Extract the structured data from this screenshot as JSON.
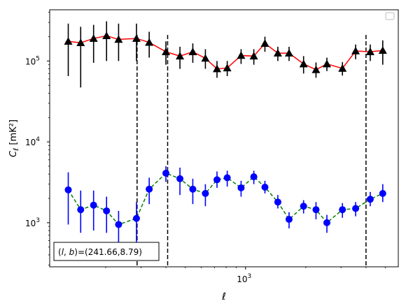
{
  "chart_data": {
    "type": "scatter",
    "xscale": "log",
    "yscale": "log",
    "xlim": [
      105,
      5800
    ],
    "ylim": [
      285,
      430000
    ],
    "xlabel": "ℓ",
    "ylabel": "C_ℓ [mK²]",
    "x_ticks": [
      {
        "value": 1000,
        "base": "10",
        "exp": "3"
      }
    ],
    "y_ticks": [
      {
        "value": 1000,
        "base": "10",
        "exp": "3"
      },
      {
        "value": 10000,
        "base": "10",
        "exp": "4"
      },
      {
        "value": 100000,
        "base": "10",
        "exp": "5"
      }
    ],
    "annotation": "(l, b)=(241.66,8.79)",
    "legend": {
      "placement": "top-right",
      "entries": []
    },
    "vlines": [
      287,
      408,
      4000
    ],
    "series": [
      {
        "color": "#ff0000",
        "marker": "triangle",
        "marker_color": "#000000",
        "errorbar_color": "#000000",
        "linestyle": "solid",
        "points": [
          {
            "x": 130,
            "y": 175000,
            "lo": 65000,
            "hi": 290000
          },
          {
            "x": 150,
            "y": 168000,
            "lo": 47000,
            "hi": 265000
          },
          {
            "x": 174,
            "y": 190000,
            "lo": 95000,
            "hi": 280000
          },
          {
            "x": 202,
            "y": 205000,
            "lo": 100000,
            "hi": 310000
          },
          {
            "x": 232,
            "y": 185000,
            "lo": 100000,
            "hi": 290000
          },
          {
            "x": 285,
            "y": 190000,
            "lo": 100000,
            "hi": 290000
          },
          {
            "x": 330,
            "y": 170000,
            "lo": 110000,
            "hi": 230000
          },
          {
            "x": 400,
            "y": 130000,
            "lo": 90000,
            "hi": 175000
          },
          {
            "x": 470,
            "y": 115000,
            "lo": 80000,
            "hi": 150000
          },
          {
            "x": 545,
            "y": 130000,
            "lo": 95000,
            "hi": 165000
          },
          {
            "x": 630,
            "y": 108000,
            "lo": 80000,
            "hi": 140000
          },
          {
            "x": 720,
            "y": 80000,
            "lo": 62000,
            "hi": 100000
          },
          {
            "x": 810,
            "y": 82000,
            "lo": 65000,
            "hi": 100000
          },
          {
            "x": 950,
            "y": 117000,
            "lo": 92000,
            "hi": 140000
          },
          {
            "x": 1100,
            "y": 115000,
            "lo": 90000,
            "hi": 140000
          },
          {
            "x": 1250,
            "y": 165000,
            "lo": 130000,
            "hi": 200000
          },
          {
            "x": 1450,
            "y": 125000,
            "lo": 100000,
            "hi": 150000
          },
          {
            "x": 1650,
            "y": 125000,
            "lo": 100000,
            "hi": 150000
          },
          {
            "x": 1950,
            "y": 92000,
            "lo": 70000,
            "hi": 115000
          },
          {
            "x": 2250,
            "y": 78000,
            "lo": 62000,
            "hi": 96000
          },
          {
            "x": 2550,
            "y": 92000,
            "lo": 75000,
            "hi": 110000
          },
          {
            "x": 3050,
            "y": 81000,
            "lo": 66000,
            "hi": 97000
          },
          {
            "x": 3550,
            "y": 133000,
            "lo": 105000,
            "hi": 160000
          },
          {
            "x": 4200,
            "y": 130000,
            "lo": 100000,
            "hi": 160000
          },
          {
            "x": 4850,
            "y": 135000,
            "lo": 90000,
            "hi": 180000
          }
        ]
      },
      {
        "color": "#008000",
        "marker": "circle",
        "marker_color": "#0000ff",
        "errorbar_color": "#0000ff",
        "linestyle": "dashed",
        "points": [
          {
            "x": 130,
            "y": 2550,
            "lo": 950,
            "hi": 4200
          },
          {
            "x": 150,
            "y": 1450,
            "lo": 750,
            "hi": 2500
          },
          {
            "x": 174,
            "y": 1650,
            "lo": 800,
            "hi": 2500
          },
          {
            "x": 202,
            "y": 1400,
            "lo": 750,
            "hi": 2100
          },
          {
            "x": 232,
            "y": 950,
            "lo": 550,
            "hi": 1400
          },
          {
            "x": 285,
            "y": 1130,
            "lo": 500,
            "hi": 1800
          },
          {
            "x": 330,
            "y": 2600,
            "lo": 1700,
            "hi": 3600
          },
          {
            "x": 400,
            "y": 4100,
            "lo": 3200,
            "hi": 5000
          },
          {
            "x": 470,
            "y": 3500,
            "lo": 2200,
            "hi": 4800
          },
          {
            "x": 545,
            "y": 2600,
            "lo": 1700,
            "hi": 3500
          },
          {
            "x": 630,
            "y": 2300,
            "lo": 1600,
            "hi": 3000
          },
          {
            "x": 720,
            "y": 3400,
            "lo": 2700,
            "hi": 4300
          },
          {
            "x": 810,
            "y": 3600,
            "lo": 2800,
            "hi": 4400
          },
          {
            "x": 950,
            "y": 2700,
            "lo": 2100,
            "hi": 3300
          },
          {
            "x": 1100,
            "y": 3700,
            "lo": 3000,
            "hi": 4400
          },
          {
            "x": 1250,
            "y": 2750,
            "lo": 2300,
            "hi": 3300
          },
          {
            "x": 1450,
            "y": 1800,
            "lo": 1500,
            "hi": 2200
          },
          {
            "x": 1650,
            "y": 1100,
            "lo": 850,
            "hi": 1350
          },
          {
            "x": 1950,
            "y": 1600,
            "lo": 1300,
            "hi": 1900
          },
          {
            "x": 2250,
            "y": 1450,
            "lo": 1100,
            "hi": 1800
          },
          {
            "x": 2550,
            "y": 1000,
            "lo": 750,
            "hi": 1250
          },
          {
            "x": 3050,
            "y": 1450,
            "lo": 1150,
            "hi": 1750
          },
          {
            "x": 3550,
            "y": 1500,
            "lo": 1200,
            "hi": 1800
          },
          {
            "x": 4200,
            "y": 1950,
            "lo": 1600,
            "hi": 2400
          },
          {
            "x": 4850,
            "y": 2300,
            "lo": 1800,
            "hi": 3000
          }
        ]
      }
    ]
  }
}
